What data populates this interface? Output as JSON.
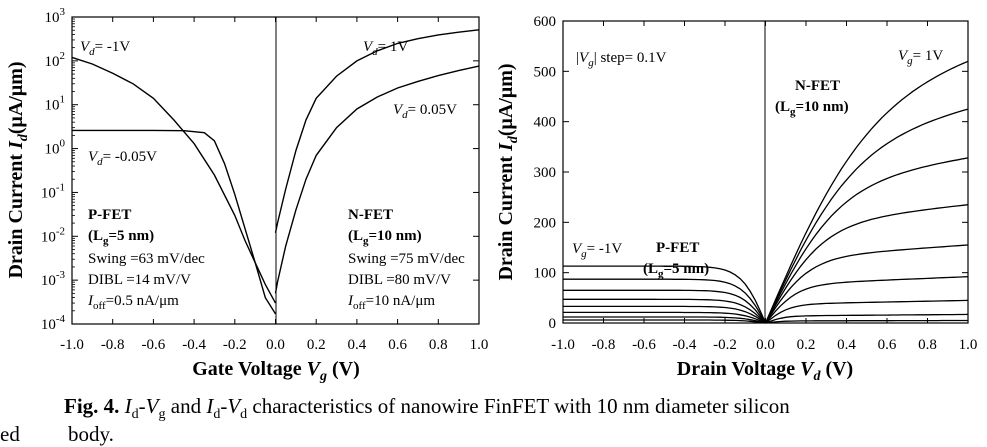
{
  "chart_data": [
    {
      "type": "line",
      "xlabel": "Gate Voltage V_g (V)",
      "ylabel": "Drain Current I_d(μA/μm)",
      "x_ticks": [
        "-1.0",
        "-0.8",
        "-0.6",
        "-0.4",
        "-0.2",
        "0.0",
        "0.2",
        "0.4",
        "0.6",
        "0.8",
        "1.0"
      ],
      "y_scale": "log",
      "y_ticks": [
        "10^-4",
        "10^-3",
        "10^-2",
        "10^-1",
        "10^0",
        "10^1",
        "10^2",
        "10^3"
      ],
      "xlim": [
        -1.0,
        1.0
      ],
      "ylim": [
        0.0001,
        1000
      ],
      "series": [
        {
          "name": "Vd= -1V",
          "x": [
            -1.0,
            -0.9,
            -0.8,
            -0.7,
            -0.6,
            -0.5,
            -0.4,
            -0.3,
            -0.2,
            -0.15,
            -0.1,
            -0.05,
            0.0
          ],
          "y": [
            120,
            85,
            52,
            30,
            14,
            4.5,
            1.3,
            0.25,
            0.03,
            0.008,
            0.0025,
            0.0008,
            0.0003
          ]
        },
        {
          "name": "Vd= -0.05V",
          "x": [
            -1.0,
            -0.8,
            -0.6,
            -0.45,
            -0.35,
            -0.3,
            -0.25,
            -0.2,
            -0.15,
            -0.1,
            -0.05,
            0.0
          ],
          "y": [
            2.6,
            2.6,
            2.6,
            2.55,
            2.3,
            1.5,
            0.45,
            0.09,
            0.015,
            0.0025,
            0.0004,
            0.00017
          ]
        },
        {
          "name": "Vd= 1V",
          "x": [
            0.0,
            0.01,
            0.05,
            0.1,
            0.15,
            0.2,
            0.3,
            0.4,
            0.5,
            0.6,
            0.7,
            0.8,
            0.9,
            1.0
          ],
          "y": [
            0.012,
            0.02,
            0.12,
            0.9,
            4.5,
            14,
            45,
            100,
            170,
            250,
            320,
            390,
            450,
            510
          ]
        },
        {
          "name": "Vd= 0.05V",
          "x": [
            0.0,
            0.01,
            0.05,
            0.1,
            0.15,
            0.2,
            0.3,
            0.4,
            0.5,
            0.6,
            0.7,
            0.8,
            0.9,
            1.0
          ],
          "y": [
            0.0005,
            0.0009,
            0.006,
            0.04,
            0.2,
            0.7,
            3,
            8,
            15,
            24,
            34,
            46,
            60,
            76
          ]
        }
      ],
      "annotations": {
        "vd_neg1": "V_d= -1V",
        "vd_neg005": "V_d= -0.05V",
        "vd_1": "V_d= 1V",
        "vd_005": "V_d= 0.05V",
        "pfet_title": "P-FET",
        "pfet_lg": "(L_g=5 nm)",
        "pfet_swing": "Swing =63 mV/dec",
        "pfet_dibl": "DIBL =14 mV/V",
        "pfet_ioff": "I_off=0.5 nA/μm",
        "nfet_title": "N-FET",
        "nfet_lg": "(L_g=10 nm)",
        "nfet_swing": "Swing =75 mV/dec",
        "nfet_dibl": "DIBL =80 mV/V",
        "nfet_ioff": "I_off=10 nA/μm"
      }
    },
    {
      "type": "line",
      "xlabel": "Drain Voltage V_d (V)",
      "ylabel": "Drain Current I_d(μA/μm)",
      "x_ticks": [
        "-1.0",
        "-0.8",
        "-0.6",
        "-0.4",
        "-0.2",
        "0.0",
        "0.2",
        "0.4",
        "0.6",
        "0.8",
        "1.0"
      ],
      "y_ticks": [
        "0",
        "100",
        "200",
        "300",
        "400",
        "500",
        "600"
      ],
      "xlim": [
        -1.0,
        1.0
      ],
      "ylim": [
        0,
        600
      ],
      "nfet_saturation_currents": [
        520,
        425,
        328,
        235,
        155,
        92,
        45,
        17,
        5
      ],
      "pfet_saturation_currents": [
        113,
        87,
        65,
        47,
        33,
        21,
        12,
        6
      ],
      "annotations": {
        "step": "|V_g| step= 0.1V",
        "vg_1": "V_g= 1V",
        "vg_neg1": "V_g= -1V",
        "nfet_title": "N-FET",
        "nfet_lg": "(L_g=10 nm)",
        "pfet_title": "P-FET",
        "pfet_lg": "(L_g=5 nm)"
      }
    }
  ],
  "caption": {
    "fig_label": "Fig. 4.",
    "text": "I_d-V_g and I_d-V_d characteristics of nanowire FinFET with 10 nm diameter silicon",
    "line2": "body.",
    "edge_fragment": "ed"
  }
}
